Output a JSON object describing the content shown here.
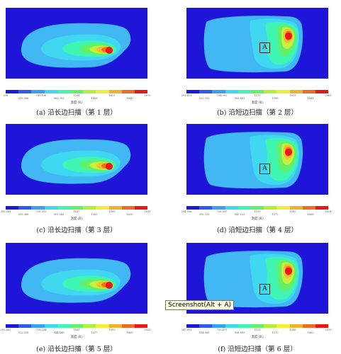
{
  "panels": [
    {
      "caption": "(a) 沿长边扫描（第 1 层）",
      "colorbar_title": "温度 (K)",
      "ticks": [
        "298",
        "519.568",
        "741.136",
        "962.703",
        "1184",
        "1406",
        "1627",
        "1849",
        "2070"
      ],
      "marker": ""
    },
    {
      "caption": "(b) 沿短边扫描（第 2 层）",
      "colorbar_title": "温度 (K)",
      "ticks": [
        "291.413",
        "512.702",
        "734.092",
        "955.461",
        "1177",
        "1398",
        "1619",
        "1841",
        "2062"
      ],
      "marker": "A"
    },
    {
      "caption": "(c) 沿长边扫描（第 3 层）",
      "colorbar_title": "温度 (K)",
      "ticks": [
        "303.581",
        "519.568",
        "735.555",
        "951.542",
        "1167",
        "1383",
        "1599",
        "1815",
        "2031"
      ],
      "marker": ""
    },
    {
      "caption": "(d) 沿短边扫描（第 4 层）",
      "colorbar_title": "温度 (K)",
      "ticks": [
        "294.506",
        "510.722",
        "726.937",
        "943.153",
        "1159",
        "1375",
        "1592",
        "1808",
        "2024"
      ],
      "marker": "A"
    },
    {
      "caption": "(e) 沿长边扫描（第 5 层）",
      "colorbar_title": "温度 (K)",
      "ticks": [
        "295.802",
        "512.018",
        "728.234",
        "944.449",
        "1161",
        "1377",
        "1593",
        "1809",
        "2025"
      ],
      "marker": ""
    },
    {
      "caption": "(f) 沿短边扫描（第 6 层）",
      "colorbar_title": "温度 (K)",
      "ticks": [
        "287.651",
        "504.065",
        "720.479",
        "936.893",
        "1153",
        "1370",
        "1586",
        "1802",
        "2019"
      ],
      "marker": "A"
    }
  ],
  "colorbar_colors": [
    "#1a1adb",
    "#2a5cf0",
    "#38a0f5",
    "#40d8f0",
    "#3ff5b4",
    "#62f068",
    "#b4f03a",
    "#f0f03a",
    "#f0b030",
    "#f06a20",
    "#e81818"
  ],
  "background_color": "#1f15d9",
  "tooltip": "Screenshot(Alt + A)"
}
